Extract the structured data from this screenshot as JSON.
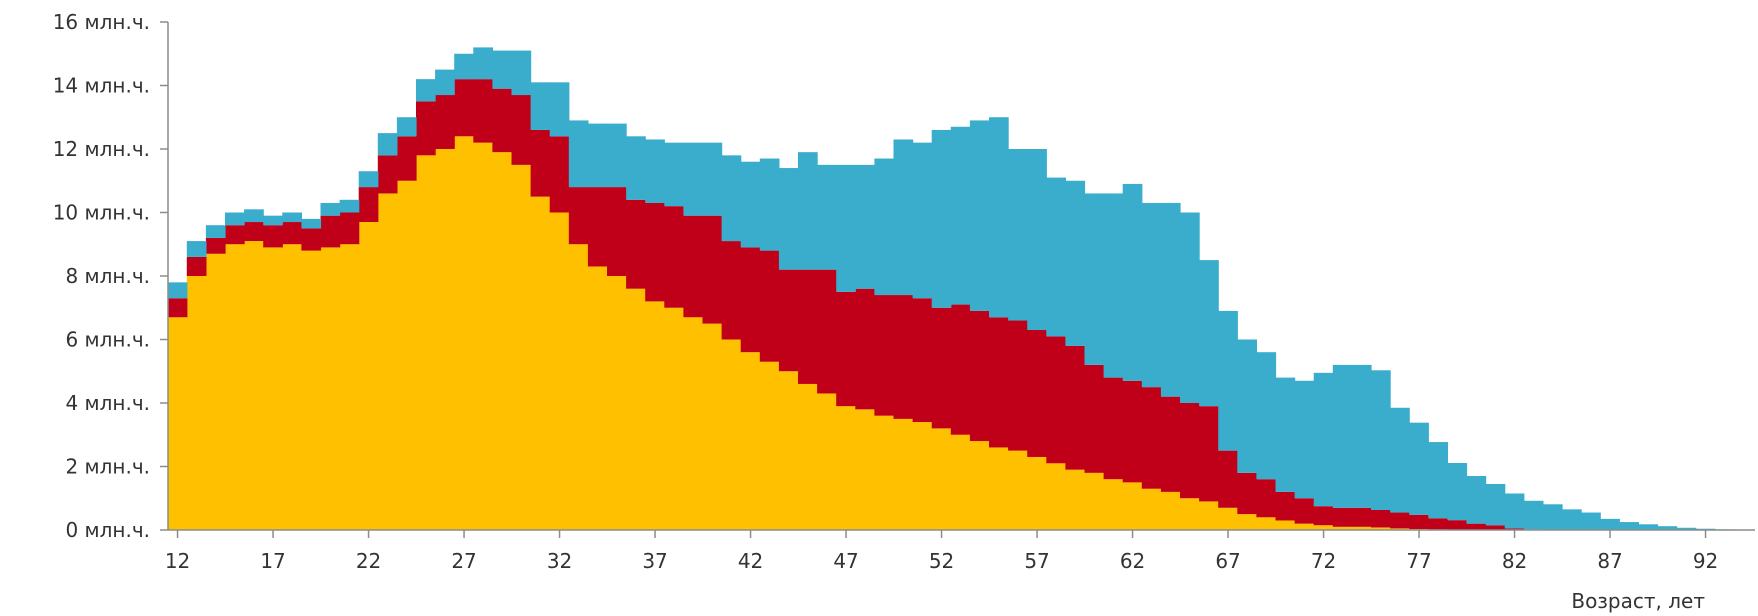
{
  "chart_data": {
    "type": "area",
    "stacked": true,
    "step": true,
    "xlabel": "Возраст, лет",
    "ylabel": "",
    "ylim": [
      0,
      16
    ],
    "xlim": [
      12,
      95
    ],
    "y_ticks": [
      0,
      2,
      4,
      6,
      8,
      10,
      12,
      14,
      16
    ],
    "y_tick_labels": [
      "0 млн.ч.",
      "2 млн.ч.",
      "4 млн.ч.",
      "6 млн.ч.",
      "8 млн.ч.",
      "10 млн.ч.",
      "12 млн.ч.",
      "14 млн.ч.",
      "16 млн.ч."
    ],
    "x_ticks": [
      12,
      17,
      22,
      27,
      32,
      37,
      42,
      47,
      52,
      57,
      62,
      67,
      72,
      77,
      82,
      87,
      92
    ],
    "x_tick_labels": [
      "12",
      "17",
      "22",
      "27",
      "32",
      "37",
      "42",
      "47",
      "52",
      "57",
      "62",
      "67",
      "72",
      "77",
      "82",
      "87",
      "92"
    ],
    "grid": false,
    "legend": "none",
    "x": [
      12,
      13,
      14,
      15,
      16,
      17,
      18,
      19,
      20,
      21,
      22,
      23,
      24,
      25,
      26,
      27,
      28,
      29,
      30,
      31,
      32,
      33,
      34,
      35,
      36,
      37,
      38,
      39,
      40,
      41,
      42,
      43,
      44,
      45,
      46,
      47,
      48,
      49,
      50,
      51,
      52,
      53,
      54,
      55,
      56,
      57,
      58,
      59,
      60,
      61,
      62,
      63,
      64,
      65,
      66,
      67,
      68,
      69,
      70,
      71,
      72,
      73,
      74,
      75,
      76,
      77,
      78,
      79,
      80,
      81,
      82,
      83,
      84,
      85,
      86,
      87,
      88,
      89,
      90,
      91,
      92,
      93,
      94
    ],
    "series": [
      {
        "color": "#ffc000",
        "values": [
          6.7,
          8.0,
          8.7,
          9.0,
          9.1,
          8.9,
          9.0,
          8.8,
          8.9,
          9.0,
          9.7,
          10.6,
          11.0,
          11.8,
          12.0,
          12.4,
          12.2,
          11.9,
          11.5,
          10.5,
          10.0,
          9.0,
          8.3,
          8.0,
          7.6,
          7.2,
          7.0,
          6.7,
          6.5,
          6.0,
          5.6,
          5.3,
          5.0,
          4.6,
          4.3,
          3.9,
          3.8,
          3.6,
          3.5,
          3.4,
          3.2,
          3.0,
          2.8,
          2.6,
          2.5,
          2.3,
          2.1,
          1.9,
          1.8,
          1.6,
          1.5,
          1.3,
          1.2,
          1.0,
          0.9,
          0.7,
          0.5,
          0.4,
          0.3,
          0.2,
          0.15,
          0.1,
          0.1,
          0.08,
          0.05,
          0.03,
          0.02,
          0.01,
          0,
          0,
          0,
          0,
          0,
          0,
          0,
          0,
          0,
          0,
          0,
          0,
          0,
          0,
          0
        ]
      },
      {
        "color": "#c00018",
        "values": [
          0.6,
          0.6,
          0.5,
          0.6,
          0.6,
          0.7,
          0.7,
          0.7,
          1.0,
          1.0,
          1.1,
          1.2,
          1.4,
          1.7,
          1.7,
          1.8,
          2.0,
          2.0,
          2.2,
          2.1,
          2.4,
          1.8,
          2.5,
          2.8,
          2.8,
          3.1,
          3.2,
          3.2,
          3.4,
          3.1,
          3.3,
          3.5,
          3.2,
          3.6,
          3.9,
          3.6,
          3.8,
          3.8,
          3.9,
          3.9,
          3.8,
          4.1,
          4.1,
          4.1,
          4.1,
          4.0,
          4.0,
          3.9,
          3.4,
          3.2,
          3.2,
          3.2,
          3.0,
          3.0,
          3.0,
          1.8,
          1.3,
          1.2,
          0.9,
          0.8,
          0.6,
          0.6,
          0.6,
          0.55,
          0.5,
          0.45,
          0.35,
          0.3,
          0.2,
          0.15,
          0.05,
          0.02,
          0.01,
          0,
          0,
          0,
          0,
          0,
          0,
          0,
          0,
          0,
          0
        ]
      },
      {
        "color": "#3aaccc",
        "values": [
          0.5,
          0.5,
          0.4,
          0.4,
          0.4,
          0.3,
          0.3,
          0.3,
          0.4,
          0.4,
          0.5,
          0.7,
          0.6,
          0.7,
          0.8,
          0.8,
          1.0,
          1.2,
          1.4,
          1.5,
          1.7,
          2.1,
          2.0,
          2.0,
          2.0,
          2.0,
          2.0,
          2.3,
          2.3,
          2.7,
          2.7,
          2.9,
          3.2,
          3.7,
          3.3,
          4.0,
          3.9,
          4.3,
          4.9,
          4.9,
          5.6,
          5.6,
          6.0,
          6.3,
          5.4,
          5.7,
          5.0,
          5.2,
          5.4,
          5.8,
          6.2,
          5.8,
          6.1,
          6.0,
          4.6,
          4.4,
          4.2,
          4.0,
          3.6,
          3.7,
          4.2,
          4.5,
          4.5,
          4.4,
          3.3,
          2.9,
          2.4,
          1.8,
          1.5,
          1.3,
          1.1,
          0.9,
          0.8,
          0.65,
          0.55,
          0.35,
          0.25,
          0.18,
          0.12,
          0.07,
          0.04,
          0.02,
          0.01
        ]
      }
    ]
  }
}
